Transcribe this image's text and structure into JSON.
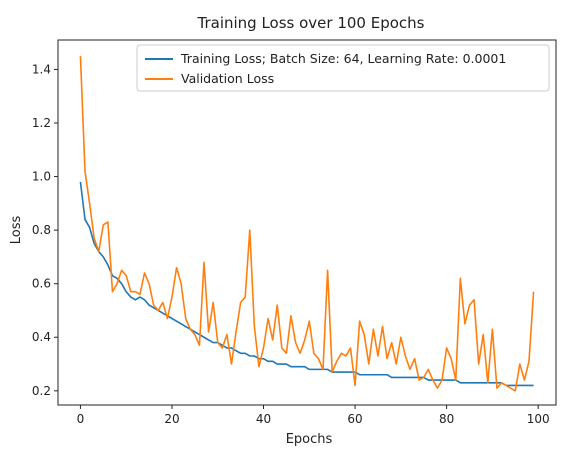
{
  "chart_data": {
    "type": "line",
    "title": "Training Loss over 100 Epochs",
    "xlabel": "Epochs",
    "ylabel": "Loss",
    "xlim": [
      -4.9,
      103.9
    ],
    "ylim": [
      0.147,
      1.51
    ],
    "xticks": [
      0,
      20,
      40,
      60,
      80,
      100
    ],
    "yticks": [
      0.2,
      0.4,
      0.6,
      0.8,
      1.0,
      1.2,
      1.4
    ],
    "ytick_labels": [
      "0.2",
      "0.4",
      "0.6",
      "0.8",
      "1.0",
      "1.2",
      "1.4"
    ],
    "grid": false,
    "legend_position": "top-right",
    "series": [
      {
        "name": "Training Loss; Batch Size: 64, Learning Rate: 0.0001",
        "color": "#1f77b4",
        "x": [
          0,
          1,
          2,
          3,
          4,
          5,
          6,
          7,
          8,
          9,
          10,
          11,
          12,
          13,
          14,
          15,
          16,
          17,
          18,
          19,
          20,
          21,
          22,
          23,
          24,
          25,
          26,
          27,
          28,
          29,
          30,
          31,
          32,
          33,
          34,
          35,
          36,
          37,
          38,
          39,
          40,
          41,
          42,
          43,
          44,
          45,
          46,
          47,
          48,
          49,
          50,
          51,
          52,
          53,
          54,
          55,
          56,
          57,
          58,
          59,
          60,
          61,
          62,
          63,
          64,
          65,
          66,
          67,
          68,
          69,
          70,
          71,
          72,
          73,
          74,
          75,
          76,
          77,
          78,
          79,
          80,
          81,
          82,
          83,
          84,
          85,
          86,
          87,
          88,
          89,
          90,
          91,
          92,
          93,
          94,
          95,
          96,
          97,
          98,
          99
        ],
        "values": [
          0.98,
          0.84,
          0.81,
          0.75,
          0.72,
          0.7,
          0.67,
          0.63,
          0.62,
          0.6,
          0.57,
          0.55,
          0.54,
          0.55,
          0.54,
          0.52,
          0.51,
          0.5,
          0.49,
          0.48,
          0.47,
          0.46,
          0.45,
          0.44,
          0.43,
          0.42,
          0.41,
          0.4,
          0.39,
          0.38,
          0.38,
          0.37,
          0.36,
          0.36,
          0.35,
          0.34,
          0.34,
          0.33,
          0.33,
          0.32,
          0.32,
          0.31,
          0.31,
          0.3,
          0.3,
          0.3,
          0.29,
          0.29,
          0.29,
          0.29,
          0.28,
          0.28,
          0.28,
          0.28,
          0.28,
          0.27,
          0.27,
          0.27,
          0.27,
          0.27,
          0.27,
          0.26,
          0.26,
          0.26,
          0.26,
          0.26,
          0.26,
          0.26,
          0.25,
          0.25,
          0.25,
          0.25,
          0.25,
          0.25,
          0.25,
          0.25,
          0.24,
          0.24,
          0.24,
          0.24,
          0.24,
          0.24,
          0.24,
          0.23,
          0.23,
          0.23,
          0.23,
          0.23,
          0.23,
          0.23,
          0.23,
          0.23,
          0.23,
          0.22,
          0.22,
          0.22,
          0.22,
          0.22,
          0.22,
          0.22
        ]
      },
      {
        "name": "Validation Loss",
        "color": "#ff7f0e",
        "x": [
          0,
          1,
          2,
          3,
          4,
          5,
          6,
          7,
          8,
          9,
          10,
          11,
          12,
          13,
          14,
          15,
          16,
          17,
          18,
          19,
          20,
          21,
          22,
          23,
          24,
          25,
          26,
          27,
          28,
          29,
          30,
          31,
          32,
          33,
          34,
          35,
          36,
          37,
          38,
          39,
          40,
          41,
          42,
          43,
          44,
          45,
          46,
          47,
          48,
          49,
          50,
          51,
          52,
          53,
          54,
          55,
          56,
          57,
          58,
          59,
          60,
          61,
          62,
          63,
          64,
          65,
          66,
          67,
          68,
          69,
          70,
          71,
          72,
          73,
          74,
          75,
          76,
          77,
          78,
          79,
          80,
          81,
          82,
          83,
          84,
          85,
          86,
          87,
          88,
          89,
          90,
          91,
          92,
          93,
          94,
          95,
          96,
          97,
          98,
          99
        ],
        "values": [
          1.45,
          1.02,
          0.9,
          0.77,
          0.72,
          0.82,
          0.83,
          0.57,
          0.6,
          0.65,
          0.63,
          0.57,
          0.57,
          0.56,
          0.64,
          0.6,
          0.52,
          0.5,
          0.53,
          0.47,
          0.55,
          0.66,
          0.6,
          0.47,
          0.43,
          0.41,
          0.37,
          0.68,
          0.42,
          0.53,
          0.38,
          0.36,
          0.41,
          0.3,
          0.42,
          0.53,
          0.55,
          0.8,
          0.44,
          0.29,
          0.36,
          0.47,
          0.39,
          0.52,
          0.36,
          0.34,
          0.48,
          0.38,
          0.34,
          0.39,
          0.46,
          0.34,
          0.32,
          0.28,
          0.65,
          0.27,
          0.31,
          0.34,
          0.33,
          0.36,
          0.22,
          0.46,
          0.41,
          0.3,
          0.43,
          0.33,
          0.44,
          0.32,
          0.38,
          0.3,
          0.4,
          0.33,
          0.28,
          0.32,
          0.24,
          0.25,
          0.28,
          0.24,
          0.21,
          0.24,
          0.36,
          0.32,
          0.24,
          0.62,
          0.45,
          0.52,
          0.54,
          0.3,
          0.41,
          0.23,
          0.43,
          0.21,
          0.23,
          0.22,
          0.21,
          0.2,
          0.3,
          0.24,
          0.31,
          0.57
        ]
      }
    ]
  }
}
